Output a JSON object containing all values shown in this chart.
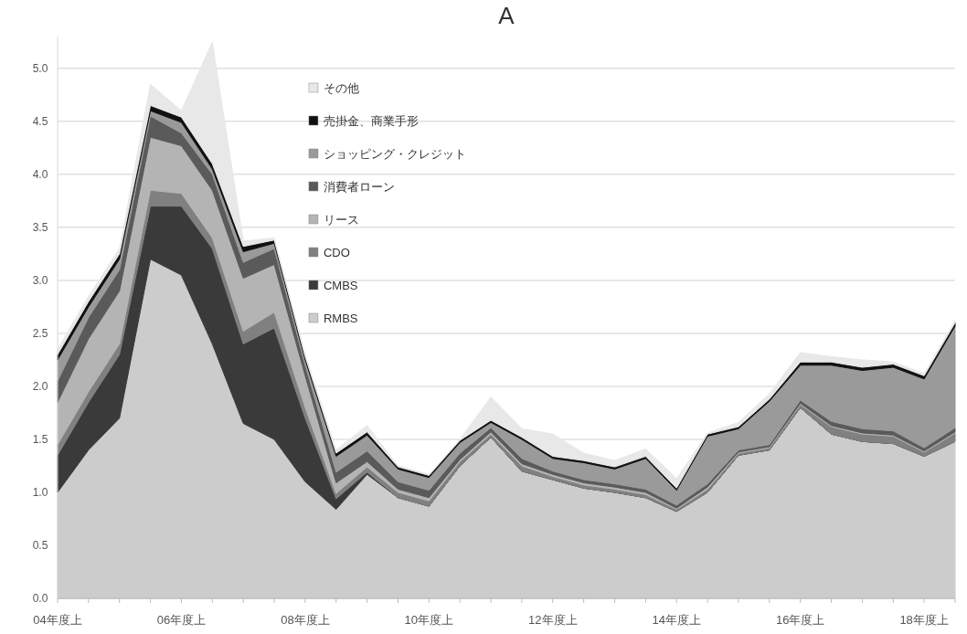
{
  "chart_data": {
    "type": "area",
    "title": "A",
    "stacked": true,
    "categories": [
      "04年度上",
      null,
      null,
      null,
      "06年度上",
      null,
      null,
      null,
      "08年度上",
      null,
      null,
      null,
      "10年度上",
      null,
      null,
      null,
      "12年度上",
      null,
      null,
      null,
      "14年度上",
      null,
      null,
      null,
      "16年度上",
      null,
      null,
      null,
      "18年度上",
      null
    ],
    "ylim": [
      0,
      5.3
    ],
    "yticks": [
      {
        "value": 0,
        "label": "0.0"
      },
      0.5,
      {
        "value": 1,
        "label": "1.0"
      },
      1.5,
      {
        "value": 2,
        "label": "2.0"
      },
      2.5,
      {
        "value": 3,
        "label": "3.0"
      },
      3.5,
      {
        "value": 4,
        "label": "4.0"
      },
      4.5,
      {
        "value": 5,
        "label": "5.0"
      }
    ],
    "grid": "y",
    "legend": "top",
    "series": [
      {
        "name": "RMBS",
        "color": "#cccccc",
        "values": [
          1.0,
          1.4,
          1.7,
          3.2,
          3.05,
          2.4,
          1.65,
          1.5,
          1.1,
          0.84,
          1.17,
          0.95,
          0.87,
          1.25,
          1.52,
          1.2,
          1.12,
          1.04,
          1.0,
          0.95,
          0.82,
          1.0,
          1.35,
          1.4,
          1.8,
          1.55,
          1.48,
          1.46,
          1.34,
          1.48
        ]
      },
      {
        "name": "CMBS",
        "color": "#3a3a3a",
        "values": [
          0.35,
          0.45,
          0.6,
          0.5,
          0.65,
          0.9,
          0.75,
          1.05,
          0.6,
          0.1,
          0.02,
          0,
          0,
          0,
          0,
          0,
          0,
          0,
          0,
          0,
          0,
          0,
          0,
          0,
          0,
          0,
          0,
          0,
          0,
          0
        ]
      },
      {
        "name": "CDO",
        "color": "#808080",
        "values": [
          0.1,
          0.1,
          0.1,
          0.15,
          0.12,
          0.1,
          0.12,
          0.15,
          0.1,
          0.05,
          0.05,
          0.05,
          0.05,
          0.04,
          0.03,
          0.05,
          0.03,
          0.03,
          0.03,
          0.03,
          0.02,
          0.03,
          0.02,
          0.02,
          0.03,
          0.07,
          0.07,
          0.07,
          0.04,
          0.08
        ]
      },
      {
        "name": "リース",
        "color": "#b4b4b4",
        "values": [
          0.4,
          0.5,
          0.5,
          0.5,
          0.45,
          0.45,
          0.5,
          0.45,
          0.3,
          0.1,
          0.05,
          0.03,
          0.03,
          0.02,
          0.02,
          0.02,
          0.02,
          0.02,
          0.02,
          0.02,
          0.01,
          0.02,
          0.01,
          0.01,
          0.01,
          0.01,
          0.01,
          0.01,
          0.01,
          0.01
        ]
      },
      {
        "name": "消費者ローン",
        "color": "#5a5a5a",
        "values": [
          0.2,
          0.2,
          0.2,
          0.2,
          0.12,
          0.15,
          0.15,
          0.15,
          0.1,
          0.1,
          0.1,
          0.07,
          0.07,
          0.06,
          0.04,
          0.05,
          0.03,
          0.03,
          0.03,
          0.03,
          0.03,
          0.03,
          0.02,
          0.02,
          0.03,
          0.04,
          0.04,
          0.04,
          0.03,
          0.04
        ]
      },
      {
        "name": "ショッピング・クレジット",
        "color": "#9a9a9a",
        "values": [
          0.2,
          0.1,
          0.1,
          0.05,
          0.1,
          0.05,
          0.1,
          0.05,
          0.05,
          0.15,
          0.15,
          0.12,
          0.12,
          0.1,
          0.05,
          0.18,
          0.12,
          0.16,
          0.14,
          0.29,
          0.14,
          0.45,
          0.2,
          0.41,
          0.33,
          0.53,
          0.55,
          0.6,
          0.65,
          0.96
        ]
      },
      {
        "name": "売掛金、商業手形",
        "color": "#111111",
        "values": [
          0.05,
          0.05,
          0.05,
          0.05,
          0.05,
          0.05,
          0.05,
          0.03,
          0.03,
          0.03,
          0.03,
          0.02,
          0.02,
          0.02,
          0.02,
          0.02,
          0.02,
          0.02,
          0.02,
          0.02,
          0.02,
          0.02,
          0.02,
          0.02,
          0.03,
          0.03,
          0.03,
          0.03,
          0.03,
          0.03
        ]
      },
      {
        "name": "その他",
        "color": "#e8e8e8",
        "values": [
          0.05,
          0.05,
          0.05,
          0.2,
          0.06,
          1.15,
          0.05,
          0.02,
          0.02,
          0.03,
          0.06,
          0.01,
          0.01,
          0.01,
          0.22,
          0.08,
          0.21,
          0.07,
          0.06,
          0.07,
          0.09,
          0.01,
          0.04,
          0.05,
          0.09,
          0.05,
          0.07,
          0.02,
          0.02,
          0.02
        ]
      }
    ]
  }
}
